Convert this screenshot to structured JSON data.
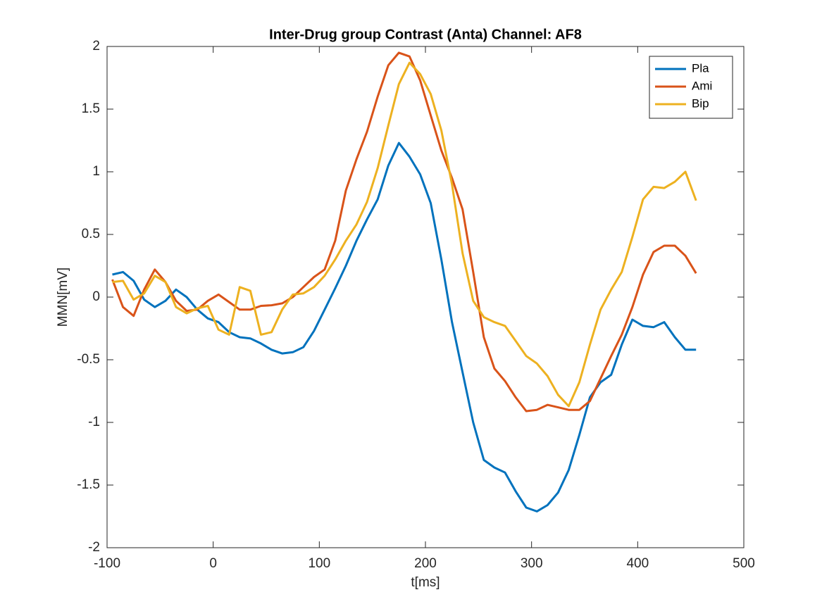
{
  "chart_data": {
    "type": "line",
    "title": "Inter-Drug group Contrast (Anta) Channel: AF8",
    "x_label": "t[ms]",
    "y_label": "MMN[mV]",
    "xlim": [
      -100,
      500
    ],
    "xticks": [
      -100,
      0,
      100,
      200,
      300,
      400,
      500
    ],
    "ylim": [
      -2,
      2
    ],
    "yticks": [
      -2,
      -1.5,
      -1,
      -0.5,
      0,
      0.5,
      1,
      1.5,
      2
    ],
    "legend": "upper right",
    "grid": false,
    "x": [
      -95,
      -85,
      -75,
      -65,
      -55,
      -45,
      -35,
      -25,
      -15,
      -5,
      5,
      15,
      25,
      35,
      45,
      55,
      65,
      75,
      85,
      95,
      105,
      115,
      125,
      135,
      145,
      155,
      165,
      175,
      185,
      195,
      205,
      215,
      225,
      235,
      245,
      255,
      265,
      275,
      285,
      295,
      305,
      315,
      325,
      335,
      345,
      355,
      365,
      375,
      385,
      395,
      405,
      415,
      425,
      435,
      445,
      455
    ],
    "series": [
      {
        "name": "Pla",
        "color": "#0072BD",
        "values": [
          0.18,
          0.2,
          0.13,
          -0.02,
          -0.08,
          -0.03,
          0.06,
          0.0,
          -0.1,
          -0.17,
          -0.2,
          -0.28,
          -0.32,
          -0.33,
          -0.37,
          -0.42,
          -0.45,
          -0.44,
          -0.4,
          -0.27,
          -0.1,
          0.07,
          0.25,
          0.45,
          0.62,
          0.78,
          1.05,
          1.23,
          1.12,
          0.98,
          0.75,
          0.3,
          -0.2,
          -0.6,
          -1.0,
          -1.3,
          -1.36,
          -1.4,
          -1.55,
          -1.68,
          -1.71,
          -1.66,
          -1.56,
          -1.38,
          -1.1,
          -0.8,
          -0.68,
          -0.62,
          -0.38,
          -0.18,
          -0.23,
          -0.24,
          -0.2,
          -0.32,
          -0.42,
          -0.42
        ]
      },
      {
        "name": "Ami",
        "color": "#D95319",
        "values": [
          0.14,
          -0.08,
          -0.15,
          0.06,
          0.22,
          0.12,
          -0.03,
          -0.11,
          -0.1,
          -0.03,
          0.02,
          -0.04,
          -0.1,
          -0.1,
          -0.07,
          -0.065,
          -0.05,
          0.0,
          0.08,
          0.16,
          0.22,
          0.45,
          0.85,
          1.1,
          1.32,
          1.6,
          1.85,
          1.95,
          1.92,
          1.73,
          1.45,
          1.17,
          0.95,
          0.7,
          0.2,
          -0.32,
          -0.57,
          -0.67,
          -0.8,
          -0.91,
          -0.9,
          -0.86,
          -0.88,
          -0.9,
          -0.9,
          -0.83,
          -0.65,
          -0.47,
          -0.3,
          -0.08,
          0.18,
          0.36,
          0.41,
          0.41,
          0.33,
          0.19
        ]
      },
      {
        "name": "Bip",
        "color": "#EDB120",
        "values": [
          0.12,
          0.13,
          -0.02,
          0.03,
          0.17,
          0.12,
          -0.08,
          -0.13,
          -0.09,
          -0.07,
          -0.26,
          -0.3,
          0.08,
          0.05,
          -0.3,
          -0.28,
          -0.1,
          0.02,
          0.03,
          0.08,
          0.17,
          0.3,
          0.45,
          0.58,
          0.76,
          1.03,
          1.37,
          1.7,
          1.87,
          1.78,
          1.62,
          1.33,
          0.9,
          0.35,
          -0.03,
          -0.16,
          -0.2,
          -0.23,
          -0.35,
          -0.47,
          -0.53,
          -0.63,
          -0.78,
          -0.87,
          -0.68,
          -0.38,
          -0.1,
          0.06,
          0.2,
          0.48,
          0.78,
          0.88,
          0.87,
          0.92,
          1.0,
          0.77
        ]
      }
    ]
  }
}
